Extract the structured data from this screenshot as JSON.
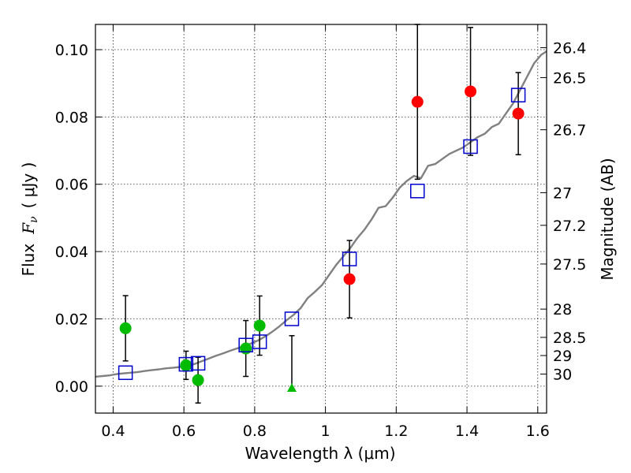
{
  "chart_data": {
    "type": "scatter",
    "xlabel": "Wavelength  λ (μm)",
    "ylabel_text": "Flux",
    "ylabel_math_main": "F",
    "ylabel_math_sub": "ν",
    "ylabel_unit": "( μJy )",
    "y2label": "Magnitude (AB)",
    "xlim": [
      0.35,
      1.625
    ],
    "ylim": [
      -0.008,
      0.1075
    ],
    "xticks": [
      0.4,
      0.6,
      0.8,
      1.0,
      1.2,
      1.4,
      1.6
    ],
    "xtick_labels": [
      "0.4",
      "0.6",
      "0.8",
      "1",
      "1.2",
      "1.4",
      "1.6"
    ],
    "yticks": [
      0.0,
      0.02,
      0.04,
      0.06,
      0.08,
      0.1
    ],
    "ytick_labels": [
      "0.00",
      "0.02",
      "0.04",
      "0.06",
      "0.08",
      "0.10"
    ],
    "y2ticks": [
      {
        "flux": 0.1006,
        "label": "26.4"
      },
      {
        "flux": 0.0917,
        "label": "26.5"
      },
      {
        "flux": 0.0762,
        "label": "26.7"
      },
      {
        "flux": 0.0575,
        "label": "27"
      },
      {
        "flux": 0.0478,
        "label": "27.2"
      },
      {
        "flux": 0.0363,
        "label": "27.5"
      },
      {
        "flux": 0.0229,
        "label": "28"
      },
      {
        "flux": 0.0145,
        "label": "28.5"
      },
      {
        "flux": 0.0091,
        "label": "29"
      },
      {
        "flux": 0.0036,
        "label": "30"
      }
    ],
    "grid": true,
    "colors": {
      "model": "#808080",
      "green": "#00bb00",
      "red": "#ff0000",
      "blue": "#0000cc",
      "errorbar": "#000000"
    },
    "series": [
      {
        "kind": "model-spectrum",
        "x": [
          0.35,
          0.37,
          0.39,
          0.41,
          0.43,
          0.45,
          0.47,
          0.49,
          0.51,
          0.53,
          0.55,
          0.57,
          0.59,
          0.61,
          0.63,
          0.65,
          0.67,
          0.69,
          0.71,
          0.73,
          0.75,
          0.77,
          0.79,
          0.81,
          0.83,
          0.85,
          0.87,
          0.89,
          0.91,
          0.93,
          0.95,
          0.97,
          0.99,
          1.01,
          1.03,
          1.05,
          1.07,
          1.09,
          1.11,
          1.13,
          1.15,
          1.17,
          1.19,
          1.21,
          1.23,
          1.25,
          1.27,
          1.29,
          1.31,
          1.33,
          1.35,
          1.37,
          1.39,
          1.41,
          1.43,
          1.45,
          1.47,
          1.49,
          1.51,
          1.53,
          1.55,
          1.57,
          1.59,
          1.61,
          1.625
        ],
        "y": [
          0.0028,
          0.003,
          0.0032,
          0.0036,
          0.0038,
          0.004,
          0.0042,
          0.0045,
          0.0048,
          0.005,
          0.0053,
          0.0055,
          0.0057,
          0.0062,
          0.0066,
          0.0074,
          0.0082,
          0.009,
          0.0097,
          0.0105,
          0.0112,
          0.0119,
          0.0127,
          0.0136,
          0.0148,
          0.0162,
          0.0178,
          0.0196,
          0.0212,
          0.0232,
          0.0262,
          0.028,
          0.03,
          0.033,
          0.036,
          0.0385,
          0.041,
          0.044,
          0.0465,
          0.0495,
          0.053,
          0.0535,
          0.056,
          0.059,
          0.061,
          0.0625,
          0.0618,
          0.0655,
          0.066,
          0.0675,
          0.069,
          0.07,
          0.071,
          0.0725,
          0.074,
          0.075,
          0.077,
          0.078,
          0.081,
          0.084,
          0.088,
          0.092,
          0.096,
          0.0985,
          0.0995
        ]
      },
      {
        "kind": "observed-circle",
        "color": "green",
        "points": [
          {
            "x": 0.435,
            "y": 0.0172,
            "err": 0.0097
          },
          {
            "x": 0.606,
            "y": 0.0062,
            "err": 0.0042
          },
          {
            "x": 0.64,
            "y": 0.0018,
            "err": 0.0068
          },
          {
            "x": 0.775,
            "y": 0.0112,
            "err": 0.0083
          },
          {
            "x": 0.814,
            "y": 0.018,
            "err": 0.0088
          }
        ]
      },
      {
        "kind": "observed-circle",
        "color": "red",
        "points": [
          {
            "x": 1.068,
            "y": 0.0318,
            "err": 0.0115
          },
          {
            "x": 1.26,
            "y": 0.0845,
            "err": 0.023
          },
          {
            "x": 1.41,
            "y": 0.0876,
            "err": 0.019
          },
          {
            "x": 1.545,
            "y": 0.081,
            "err": 0.0122
          }
        ]
      },
      {
        "kind": "upper-limit-triangle",
        "color": "green",
        "points": [
          {
            "x": 0.905,
            "y": -0.0005,
            "err_up": 0.0155
          }
        ]
      },
      {
        "kind": "model-square",
        "color": "blue",
        "points": [
          {
            "x": 0.435,
            "y": 0.004
          },
          {
            "x": 0.606,
            "y": 0.0065
          },
          {
            "x": 0.64,
            "y": 0.0068
          },
          {
            "x": 0.775,
            "y": 0.0122
          },
          {
            "x": 0.814,
            "y": 0.0132
          },
          {
            "x": 0.905,
            "y": 0.02
          },
          {
            "x": 1.068,
            "y": 0.0378
          },
          {
            "x": 1.26,
            "y": 0.058
          },
          {
            "x": 1.41,
            "y": 0.0712
          },
          {
            "x": 1.545,
            "y": 0.0865
          }
        ]
      }
    ]
  }
}
